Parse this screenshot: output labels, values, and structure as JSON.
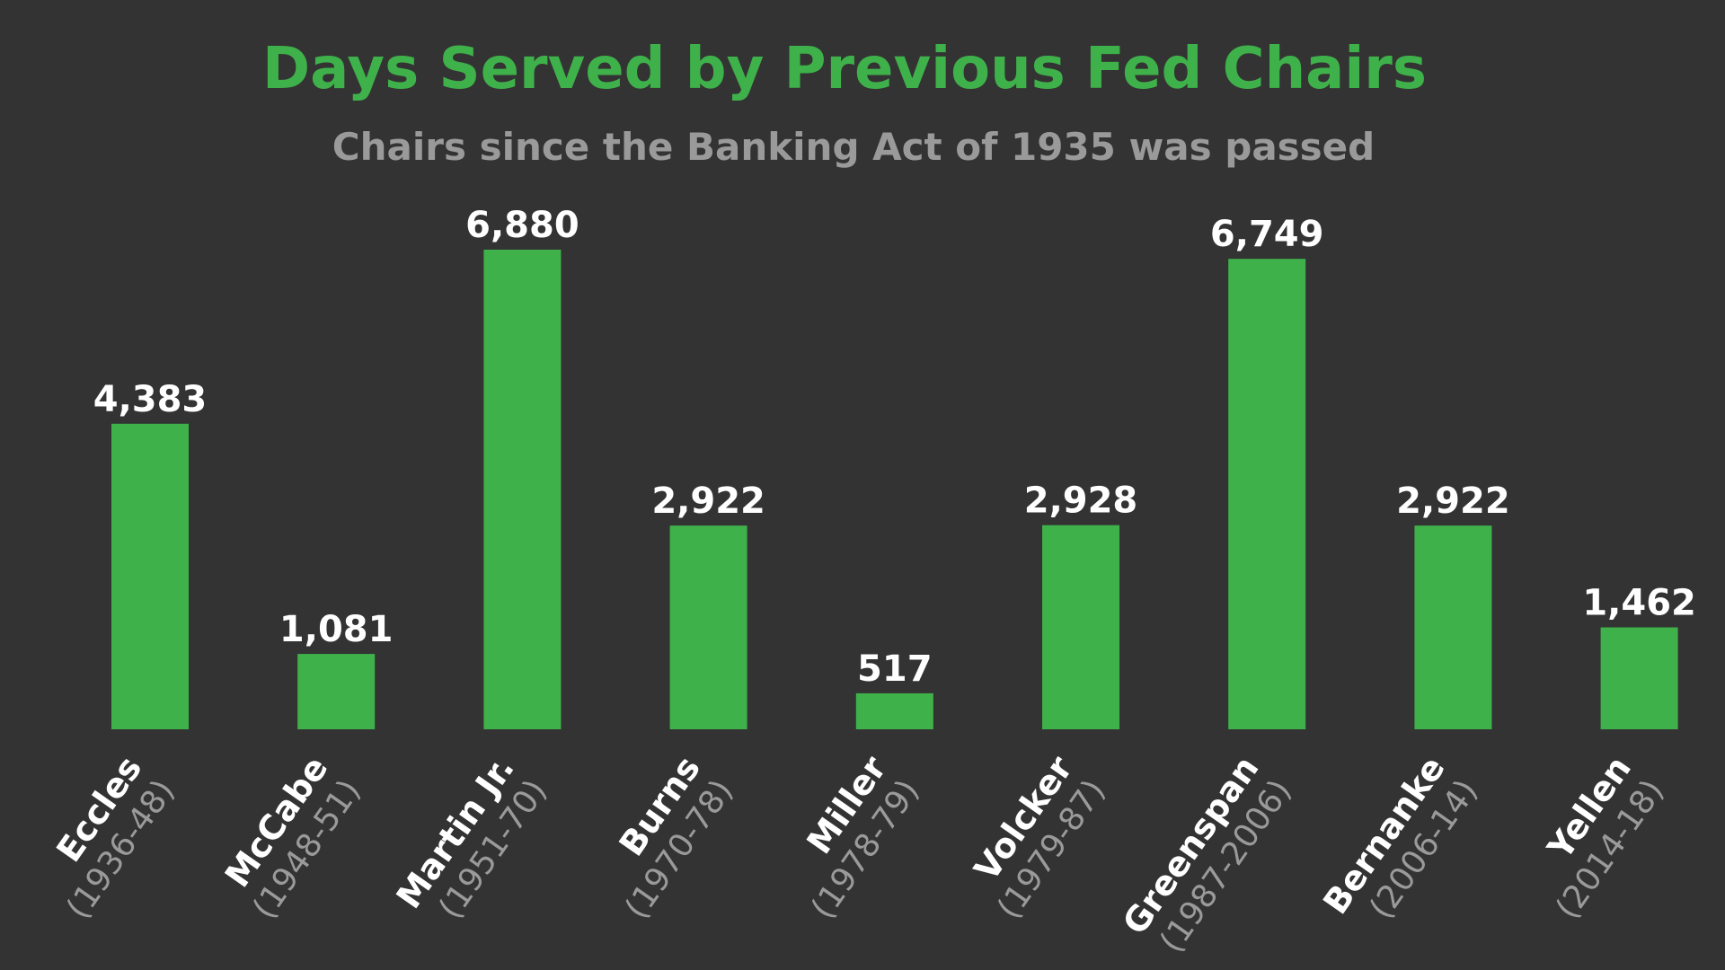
{
  "chart_data": {
    "type": "bar",
    "title": "Days Served by Previous Fed Chairs",
    "subtitle": "Chairs since the Banking Act of 1935 was passed",
    "categories": [
      "Eccles",
      "McCabe",
      "Martin Jr.",
      "Burns",
      "Miller",
      "Volcker",
      "Greenspan",
      "Bernanke",
      "Yellen"
    ],
    "years": [
      "(1936-48)",
      "(1948-51)",
      "(1951-70)",
      "(1970-78)",
      "(1978-79)",
      "(1979-87)",
      "(1987-2006)",
      "(2006-14)",
      "(2014-18)"
    ],
    "values": [
      4383,
      1081,
      6880,
      2922,
      517,
      2928,
      6749,
      2922,
      1462
    ],
    "value_labels": [
      "4,383",
      "1,081",
      "6,880",
      "2,922",
      "517",
      "2,928",
      "6,749",
      "2,922",
      "1,462"
    ],
    "ylim": [
      0,
      6880
    ],
    "grid": false,
    "colors": {
      "background": "#333333",
      "bar": "#3fb14a",
      "title": "#3fb14a",
      "subtitle": "#9a9a9a",
      "value_label": "#ffffff",
      "category_name": "#ffffff",
      "category_years": "#9a9a9a"
    }
  }
}
